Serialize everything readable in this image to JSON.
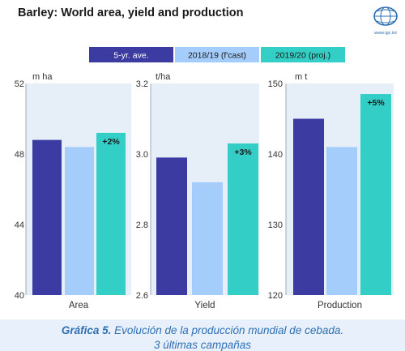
{
  "title": "Barley: World area, yield and production",
  "logo": {
    "lettering": "International Grains Council",
    "url_text": "www.igc.int",
    "color": "#2a6cb0"
  },
  "colors": {
    "plot_bg": "#e6eef7",
    "series": [
      "#3b3ba1",
      "#a5cdfb",
      "#33cfc6"
    ]
  },
  "legend": [
    "5-yr. ave.",
    "2018/19 (f'cast)",
    "2019/20 (proj.)"
  ],
  "caption": {
    "lead": "Gráfica 5.",
    "rest": " Evolución de la producción mundial de cebada.",
    "line2": "3 últimas campañas"
  },
  "chart_data": [
    {
      "type": "bar",
      "title": "",
      "xlabel": "Area",
      "unit_label": "m ha",
      "ylim": [
        40,
        52
      ],
      "yticks": [
        "40",
        "44",
        "48",
        "52"
      ],
      "categories": [
        "Area"
      ],
      "series": [
        {
          "name": "5-yr. ave.",
          "values": [
            48.8
          ]
        },
        {
          "name": "2018/19 (f'cast)",
          "values": [
            48.4
          ]
        },
        {
          "name": "2019/20 (proj.)",
          "values": [
            49.2
          ]
        }
      ],
      "annotation": "+2%"
    },
    {
      "type": "bar",
      "title": "",
      "xlabel": "Yield",
      "unit_label": "t/ha",
      "ylim": [
        2.6,
        3.2
      ],
      "yticks": [
        "2.6",
        "2.8",
        "3.0",
        "3.2"
      ],
      "categories": [
        "Yield"
      ],
      "series": [
        {
          "name": "5-yr. ave.",
          "values": [
            2.99
          ]
        },
        {
          "name": "2018/19 (f'cast)",
          "values": [
            2.92
          ]
        },
        {
          "name": "2019/20 (proj.)",
          "values": [
            3.03
          ]
        }
      ],
      "annotation": "+3%"
    },
    {
      "type": "bar",
      "title": "",
      "xlabel": "Production",
      "unit_label": "m t",
      "ylim": [
        120,
        150
      ],
      "yticks": [
        "120",
        "130",
        "140",
        "150"
      ],
      "categories": [
        "Production"
      ],
      "series": [
        {
          "name": "5-yr. ave.",
          "values": [
            145
          ]
        },
        {
          "name": "2018/19 (f'cast)",
          "values": [
            141
          ]
        },
        {
          "name": "2019/20 (proj.)",
          "values": [
            148.5
          ]
        }
      ],
      "annotation": "+5%"
    }
  ]
}
